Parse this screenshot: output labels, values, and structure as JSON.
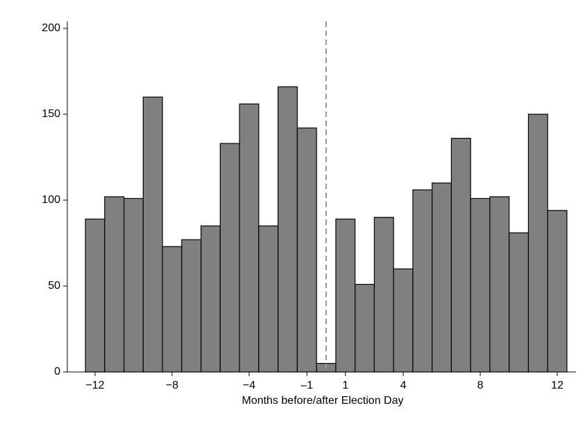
{
  "chart_data": {
    "type": "histogram",
    "x_label": "Months before/after Election Day",
    "bins": [
      -12.5,
      -11.5,
      -10.5,
      -9.5,
      -8.5,
      -7.5,
      -6.5,
      -5.5,
      -4.5,
      -3.5,
      -2.5,
      -1.5,
      -0.5,
      0.5,
      1.5,
      2.5,
      3.5,
      4.5,
      5.5,
      6.5,
      7.5,
      8.5,
      9.5,
      10.5,
      11.5,
      12.5
    ],
    "values": [
      89,
      102,
      101,
      160,
      73,
      77,
      85,
      133,
      156,
      85,
      166,
      142,
      5,
      89,
      51,
      90,
      60,
      106,
      110,
      136,
      101,
      102,
      81,
      150,
      94
    ],
    "color": "#808080",
    "xlim": [
      -13.44,
      12.97
    ],
    "ylim": [
      0,
      204
    ],
    "xticks": [
      {
        "value": -12,
        "label": "−12"
      },
      {
        "value": -8,
        "label": "−8"
      },
      {
        "value": -4,
        "label": "−4"
      },
      {
        "value": -1,
        "label": "–1"
      },
      1,
      4,
      8,
      12
    ],
    "yticks": [
      0,
      50,
      100,
      150,
      200
    ],
    "reference_line": 0
  }
}
